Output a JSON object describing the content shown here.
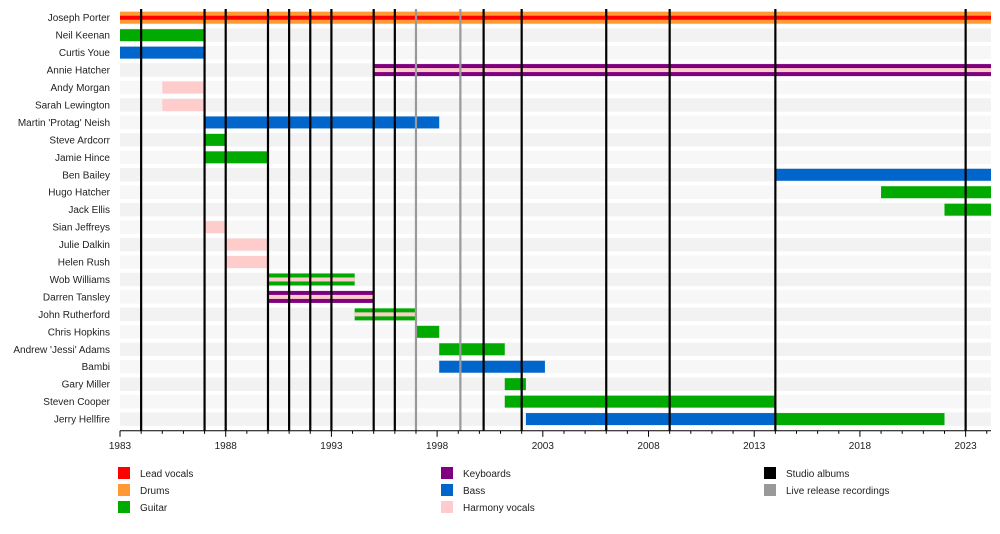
{
  "chart_data": {
    "type": "timeline",
    "title": "",
    "xlabel": "",
    "ylabel": "",
    "xlim": [
      1983,
      2024.2
    ],
    "x_ticks": [
      1983,
      1988,
      1993,
      1998,
      2003,
      2008,
      2013,
      2018,
      2023
    ],
    "studio_albums": [
      1984,
      1987,
      1988,
      1990,
      1991,
      1992,
      1993,
      1995,
      1996,
      2000.2,
      2002,
      2006,
      2009,
      2014,
      2023
    ],
    "live_recordings": [
      1997,
      1999.1
    ],
    "roles": [
      {
        "key": "lead_vocals",
        "label": "Lead vocals",
        "color": "#ff0000"
      },
      {
        "key": "drums",
        "label": "Drums",
        "color": "#ff9933"
      },
      {
        "key": "guitar",
        "label": "Guitar",
        "color": "#00aa00"
      },
      {
        "key": "keyboards",
        "label": "Keyboards",
        "color": "#800080"
      },
      {
        "key": "bass",
        "label": "Bass",
        "color": "#0066cc"
      },
      {
        "key": "harmony_vocals",
        "label": "Harmony vocals",
        "color": "#ffcccc"
      }
    ],
    "events_legend": [
      {
        "key": "studio",
        "label": "Studio albums",
        "color": "#000000"
      },
      {
        "key": "live",
        "label": "Live release recordings",
        "color": "#999999"
      }
    ],
    "members": [
      {
        "name": "Joseph Porter",
        "spans": [
          {
            "start": 1983,
            "end": 2024.2,
            "roles": [
              "drums",
              "lead_vocals"
            ]
          }
        ]
      },
      {
        "name": "Neil Keenan",
        "spans": [
          {
            "start": 1983,
            "end": 1987,
            "roles": [
              "guitar"
            ]
          }
        ]
      },
      {
        "name": "Curtis Youe",
        "spans": [
          {
            "start": 1983,
            "end": 1987,
            "roles": [
              "bass"
            ]
          }
        ]
      },
      {
        "name": "Annie Hatcher",
        "spans": [
          {
            "start": 1995,
            "end": 2024.2,
            "roles": [
              "keyboards",
              "harmony_vocals"
            ]
          }
        ]
      },
      {
        "name": "Andy Morgan",
        "spans": [
          {
            "start": 1985,
            "end": 1987,
            "roles": [
              "harmony_vocals"
            ]
          }
        ]
      },
      {
        "name": "Sarah Lewington",
        "spans": [
          {
            "start": 1985,
            "end": 1987,
            "roles": [
              "harmony_vocals"
            ]
          }
        ]
      },
      {
        "name": "Martin 'Protag' Neish",
        "spans": [
          {
            "start": 1987,
            "end": 1998.1,
            "roles": [
              "bass"
            ]
          }
        ]
      },
      {
        "name": "Steve Ardcorr",
        "spans": [
          {
            "start": 1987,
            "end": 1988,
            "roles": [
              "guitar"
            ]
          }
        ]
      },
      {
        "name": "Jamie Hince",
        "spans": [
          {
            "start": 1987,
            "end": 1990,
            "roles": [
              "guitar"
            ]
          }
        ]
      },
      {
        "name": "Ben Bailey",
        "spans": [
          {
            "start": 2014,
            "end": 2024.2,
            "roles": [
              "bass"
            ]
          }
        ]
      },
      {
        "name": "Hugo Hatcher",
        "spans": [
          {
            "start": 2019,
            "end": 2024.2,
            "roles": [
              "guitar"
            ]
          }
        ]
      },
      {
        "name": "Jack Ellis",
        "spans": [
          {
            "start": 2022,
            "end": 2024.2,
            "roles": [
              "guitar"
            ]
          }
        ]
      },
      {
        "name": "Sian Jeffreys",
        "spans": [
          {
            "start": 1987,
            "end": 1988,
            "roles": [
              "harmony_vocals"
            ]
          }
        ]
      },
      {
        "name": "Julie Dalkin",
        "spans": [
          {
            "start": 1988,
            "end": 1990,
            "roles": [
              "harmony_vocals"
            ]
          }
        ]
      },
      {
        "name": "Helen Rush",
        "spans": [
          {
            "start": 1988,
            "end": 1990,
            "roles": [
              "harmony_vocals"
            ]
          }
        ]
      },
      {
        "name": "Wob Williams",
        "spans": [
          {
            "start": 1990,
            "end": 1994.1,
            "roles": [
              "guitar",
              "harmony_vocals"
            ]
          }
        ]
      },
      {
        "name": "Darren Tansley",
        "spans": [
          {
            "start": 1990,
            "end": 1995,
            "roles": [
              "keyboards",
              "harmony_vocals"
            ]
          }
        ]
      },
      {
        "name": "John Rutherford",
        "spans": [
          {
            "start": 1994.1,
            "end": 1997,
            "roles": [
              "guitar",
              "harmony_vocals"
            ]
          }
        ]
      },
      {
        "name": "Chris Hopkins",
        "spans": [
          {
            "start": 1997,
            "end": 1998.1,
            "roles": [
              "guitar"
            ]
          }
        ]
      },
      {
        "name": "Andrew 'Jessi' Adams",
        "spans": [
          {
            "start": 1998.1,
            "end": 2001.2,
            "roles": [
              "guitar"
            ]
          }
        ]
      },
      {
        "name": "Bambi",
        "spans": [
          {
            "start": 1998.1,
            "end": 2003.1,
            "roles": [
              "bass"
            ]
          }
        ]
      },
      {
        "name": "Gary Miller",
        "spans": [
          {
            "start": 2001.2,
            "end": 2002.2,
            "roles": [
              "guitar"
            ]
          }
        ]
      },
      {
        "name": "Steven Cooper",
        "spans": [
          {
            "start": 2001.2,
            "end": 2014,
            "roles": [
              "guitar"
            ]
          }
        ]
      },
      {
        "name": "Jerry Hellfire",
        "spans": [
          {
            "start": 2002.2,
            "end": 2014,
            "roles": [
              "bass"
            ]
          },
          {
            "start": 2014,
            "end": 2022,
            "roles": [
              "guitar"
            ]
          }
        ]
      }
    ]
  }
}
